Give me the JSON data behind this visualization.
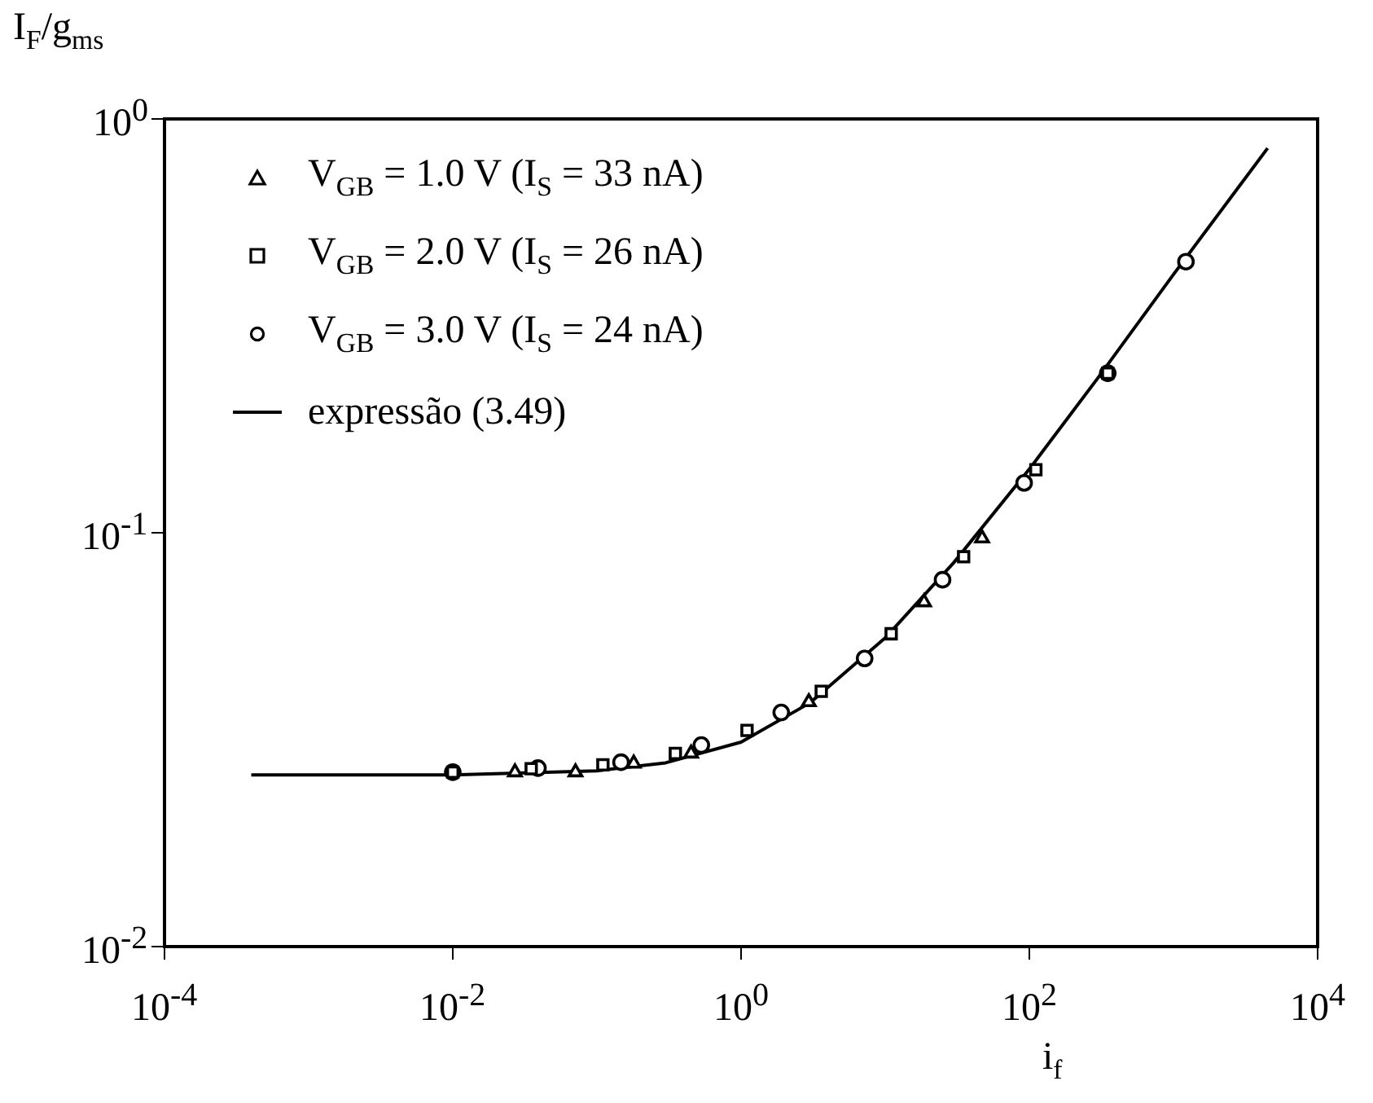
{
  "chart_data": {
    "type": "scatter",
    "xlabel": "i$_{f}$",
    "ylabel": "I$_{F}$/g$_{ms}$",
    "log": "xy",
    "grid": false,
    "legend": "top left",
    "xlim": [
      0.0001,
      10000
    ],
    "xticks": [
      {
        "value": 0.0001,
        "label": "10$^{-4}$"
      },
      {
        "value": 0.01,
        "label": "10$^{-2}$"
      },
      {
        "value": 1,
        "label": "10$^{0}$"
      },
      {
        "value": 100,
        "label": "10$^{2}$"
      },
      {
        "value": 10000,
        "label": "10$^{4}$"
      }
    ],
    "ylim": [
      0.01,
      1
    ],
    "yticks": [
      {
        "value": 0.01,
        "label": "10$^{-2}$"
      },
      {
        "value": 0.1,
        "label": "10$^{-1}$"
      },
      {
        "value": 1,
        "label": "10$^{0}$"
      }
    ],
    "series": [
      {
        "name": "V$_{GB}$ = 1.0 V  (I$_{S}$ = 33 nA)",
        "type": "scatter",
        "marker": "triangle",
        "color": "#000000",
        "x": [
          0.027,
          0.071,
          0.18,
          0.45,
          2.95,
          18.6,
          47
        ],
        "values": [
          0.0264,
          0.0264,
          0.0277,
          0.0293,
          0.039,
          0.068,
          0.097
        ]
      },
      {
        "name": "V$_{GB}$ = 2.0 V  (I$_{S}$ = 26 nA)",
        "type": "scatter",
        "marker": "square",
        "color": "#000000",
        "x": [
          0.01,
          0.035,
          0.11,
          0.35,
          1.1,
          3.6,
          11,
          35,
          111,
          350
        ],
        "values": [
          0.0264,
          0.0269,
          0.0275,
          0.0293,
          0.0333,
          0.0414,
          0.057,
          0.0875,
          0.142,
          0.243
        ]
      },
      {
        "name": "V$_{GB}$ = 3.0 V  (I$_{S}$ = 24 nA)",
        "type": "scatter",
        "marker": "circle",
        "color": "#000000",
        "x": [
          0.01,
          0.039,
          0.147,
          0.53,
          1.9,
          7.2,
          25,
          92,
          350,
          1220
        ],
        "values": [
          0.0264,
          0.027,
          0.0279,
          0.0307,
          0.0368,
          0.0497,
          0.077,
          0.132,
          0.243,
          0.452
        ]
      },
      {
        "name": "expressão (3.49)",
        "type": "line",
        "marker": "none",
        "line_style": "solid",
        "color": "#000000",
        "x": [
          0.0004,
          0.01,
          0.1,
          0.3,
          1,
          3,
          10,
          30,
          100,
          300,
          1000,
          4500
        ],
        "values": [
          0.026,
          0.026,
          0.0266,
          0.0278,
          0.0312,
          0.0388,
          0.0557,
          0.0848,
          0.1425,
          0.237,
          0.421,
          0.85
        ]
      }
    ]
  }
}
